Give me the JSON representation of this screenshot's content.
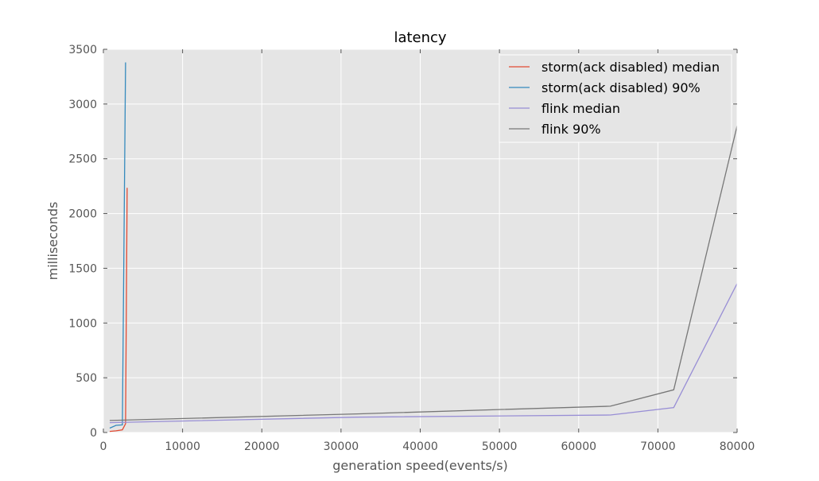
{
  "chart_data": {
    "type": "line",
    "title": "latency",
    "xlabel": "generation speed(events/s)",
    "ylabel": "milliseconds",
    "xlim": [
      0,
      80000
    ],
    "ylim": [
      0,
      3500
    ],
    "xticks": [
      0,
      10000,
      20000,
      30000,
      40000,
      50000,
      60000,
      70000,
      80000
    ],
    "xtick_labels": [
      "0",
      "10000",
      "20000",
      "30000",
      "40000",
      "50000",
      "60000",
      "70000",
      "80000"
    ],
    "yticks": [
      0,
      500,
      1000,
      1500,
      2000,
      2500,
      3000,
      3500
    ],
    "ytick_labels": [
      "0",
      "500",
      "1000",
      "1500",
      "2000",
      "2500",
      "3000",
      "3500"
    ],
    "grid": true,
    "legend_position": "top-right",
    "background": "#e5e5e5",
    "series": [
      {
        "name": "storm(ack disabled) median",
        "color": "#e24a33",
        "points": [
          [
            800,
            10
          ],
          [
            1600,
            15
          ],
          [
            2400,
            25
          ],
          [
            2800,
            80
          ],
          [
            3000,
            2235
          ]
        ]
      },
      {
        "name": "storm(ack disabled) 90%",
        "color": "#348abd",
        "points": [
          [
            800,
            40
          ],
          [
            1600,
            65
          ],
          [
            2400,
            70
          ],
          [
            2800,
            3380
          ]
        ]
      },
      {
        "name": "flink median",
        "color": "#988ed5",
        "points": [
          [
            800,
            90
          ],
          [
            32000,
            140
          ],
          [
            64000,
            160
          ],
          [
            72000,
            228
          ],
          [
            80000,
            1360
          ]
        ]
      },
      {
        "name": "flink 90%",
        "color": "#777777",
        "points": [
          [
            800,
            110
          ],
          [
            32000,
            170
          ],
          [
            64000,
            240
          ],
          [
            72000,
            390
          ],
          [
            80000,
            2800
          ]
        ]
      }
    ]
  }
}
